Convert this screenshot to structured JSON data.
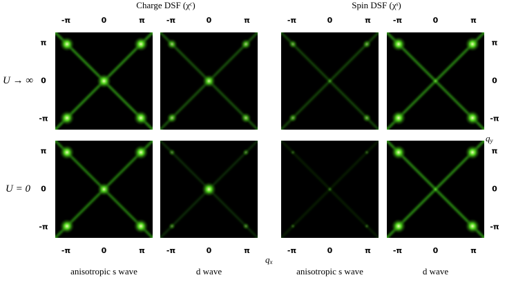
{
  "groups": [
    {
      "title": "Charge DSF (χᶜ)"
    },
    {
      "title": "Spin DSF (χˢ)"
    }
  ],
  "columns": [
    {
      "label": "anisotropic s wave",
      "top_ticks": [
        "-π",
        "0",
        "π"
      ],
      "bottom_ticks": [
        "-π",
        "0",
        "π"
      ]
    },
    {
      "label": "d wave",
      "top_ticks": [
        "-π",
        "0",
        "π"
      ],
      "bottom_ticks": [
        "-π",
        "0",
        "π"
      ]
    },
    {
      "label": "anisotropic s wave",
      "top_ticks": [
        "-π",
        "0",
        "π"
      ],
      "bottom_ticks": [
        "-π",
        "0",
        "π"
      ]
    },
    {
      "label": "d wave",
      "top_ticks": [
        "-π",
        "0",
        "π"
      ],
      "bottom_ticks": [
        "-π",
        "0",
        "π"
      ]
    }
  ],
  "rows": [
    {
      "label": "U → ∞",
      "left_ticks": [
        "π",
        "0",
        "-π"
      ],
      "right_ticks": [
        "π",
        "0",
        "-π"
      ]
    },
    {
      "label": "U = 0",
      "left_ticks": [
        "π",
        "0",
        "-π"
      ],
      "right_ticks": [
        "π",
        "0",
        "-π"
      ]
    }
  ],
  "x_axis": {
    "symbol": "q",
    "sub": "x"
  },
  "y_axis": {
    "symbol": "q",
    "sub": "y"
  }
}
